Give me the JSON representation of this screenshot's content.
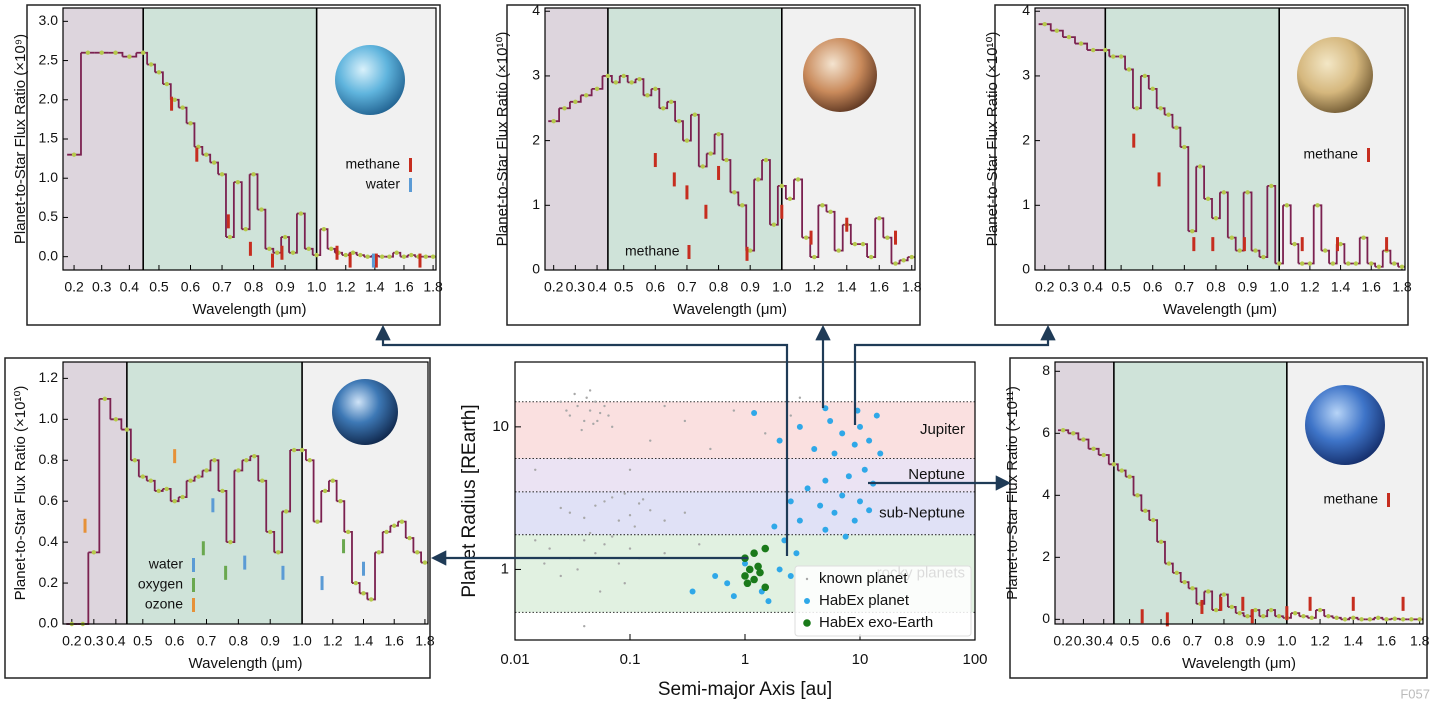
{
  "chart_data": [
    {
      "type": "line",
      "ylabel": "Planet-to-Star Flux Ratio (×10⁹)",
      "xlabel": "Wavelength (μm)",
      "x": [
        0.2,
        0.25,
        0.3,
        0.35,
        0.4,
        0.45,
        0.475,
        0.5,
        0.525,
        0.55,
        0.575,
        0.6,
        0.625,
        0.65,
        0.675,
        0.7,
        0.725,
        0.75,
        0.775,
        0.8,
        0.825,
        0.85,
        0.875,
        0.9,
        0.925,
        0.95,
        0.975,
        1.0,
        1.05,
        1.1,
        1.15,
        1.2,
        1.25,
        1.3,
        1.35,
        1.4,
        1.45,
        1.5,
        1.55,
        1.6,
        1.65,
        1.7,
        1.75,
        1.8
      ],
      "values": [
        1.3,
        2.6,
        2.6,
        2.6,
        2.55,
        2.6,
        2.45,
        2.35,
        2.2,
        2.0,
        1.9,
        1.7,
        1.4,
        1.3,
        1.2,
        1.05,
        0.25,
        0.95,
        0.35,
        1.05,
        0.6,
        0.1,
        0.05,
        0.25,
        0.05,
        0.55,
        0.1,
        0.02,
        0.35,
        0.1,
        0.05,
        0.02,
        0.05,
        0.02,
        0.0,
        0.01,
        0.0,
        0.0,
        0.05,
        0.0,
        0.02,
        0.0,
        0.0,
        0.0
      ],
      "color": "#7b2150",
      "point_color": "#b5c94c",
      "xlim": [
        0.16,
        1.82
      ],
      "xticks": [
        0.2,
        0.3,
        0.4,
        0.5,
        0.6,
        0.7,
        0.8,
        0.9,
        {
          "value": 1,
          "label": "1.0"
        },
        1.2,
        1.4,
        1.6,
        1.8
      ],
      "ylim": [
        -0.17,
        3.17
      ],
      "yticks": [
        {
          "value": 0,
          "label": "0.0"
        },
        0.5,
        {
          "value": 1,
          "label": "1.0"
        },
        1.5,
        {
          "value": 2,
          "label": "2.0"
        },
        2.5,
        {
          "value": 3,
          "label": "3.0"
        }
      ],
      "regions": [
        {
          "range": [
            0.16,
            0.45
          ],
          "color": "#ddd5dd"
        },
        {
          "range": [
            0.45,
            1.0
          ],
          "color": "#cfe3d9"
        },
        {
          "range": [
            1.0,
            1.82
          ],
          "color": "#f1f1f1"
        }
      ],
      "features": [
        {
          "name": "methane",
          "color": "#c62d1f",
          "x": [
            0.54,
            0.62,
            0.72,
            0.79,
            0.86,
            0.89,
            1.14,
            1.23,
            1.41,
            1.71
          ],
          "values": [
            1.95,
            1.3,
            0.45,
            0.1,
            -0.05,
            0.05,
            0.05,
            -0.05,
            -0.05,
            -0.05
          ]
        },
        {
          "name": "water",
          "color": "#5b9bd5",
          "x": [
            1.39
          ],
          "values": [
            -0.05
          ]
        }
      ]
    },
    {
      "type": "line",
      "ylabel": "Planet-to-Star Flux Ratio (×10¹⁰)",
      "xlabel": "Wavelength (μm)",
      "x": [
        0.2,
        0.25,
        0.3,
        0.35,
        0.4,
        0.45,
        0.475,
        0.5,
        0.525,
        0.55,
        0.575,
        0.6,
        0.625,
        0.65,
        0.675,
        0.7,
        0.725,
        0.75,
        0.775,
        0.8,
        0.825,
        0.85,
        0.875,
        0.9,
        0.925,
        0.95,
        0.975,
        1.0,
        1.05,
        1.1,
        1.15,
        1.2,
        1.25,
        1.3,
        1.35,
        1.4,
        1.45,
        1.5,
        1.55,
        1.6,
        1.65,
        1.7,
        1.75,
        1.8
      ],
      "values": [
        2.3,
        2.5,
        2.6,
        2.7,
        2.8,
        3.0,
        2.9,
        3.0,
        2.9,
        2.95,
        2.7,
        2.8,
        2.5,
        2.6,
        2.3,
        2.0,
        2.4,
        1.6,
        1.8,
        2.1,
        1.7,
        1.2,
        1.0,
        0.3,
        1.4,
        1.7,
        0.7,
        1.3,
        1.1,
        1.4,
        0.5,
        0.2,
        1.0,
        0.9,
        0.3,
        0.7,
        0.4,
        0.4,
        0.2,
        0.8,
        0.5,
        0.1,
        0.15,
        0.2
      ],
      "color": "#7b2150",
      "point_color": "#b5c94c",
      "xlim": [
        0.16,
        1.82
      ],
      "xticks": [
        0.2,
        0.3,
        0.4,
        0.5,
        0.6,
        0.7,
        0.8,
        0.9,
        {
          "value": 1,
          "label": "1.0"
        },
        1.2,
        1.4,
        1.6,
        1.8
      ],
      "ylim": [
        0,
        4.05
      ],
      "yticks": [
        0,
        1,
        2,
        3,
        4
      ],
      "regions": [
        {
          "range": [
            0.16,
            0.45
          ],
          "color": "#ddd5dd"
        },
        {
          "range": [
            0.45,
            1.0
          ],
          "color": "#cfe3d9"
        },
        {
          "range": [
            1.0,
            1.82
          ],
          "color": "#f1f1f1"
        }
      ],
      "features": [
        {
          "name": "methane",
          "color": "#c62d1f",
          "x": [
            0.6,
            0.66,
            0.7,
            0.76,
            0.8,
            0.89,
            1.0,
            1.18,
            1.4,
            1.7
          ],
          "values": [
            1.7,
            1.4,
            1.2,
            0.9,
            1.5,
            0.25,
            0.9,
            0.5,
            0.7,
            0.5
          ]
        }
      ]
    },
    {
      "type": "line",
      "ylabel": "Planet-to-Star Flux Ratio (×10¹⁰)",
      "xlabel": "Wavelength (μm)",
      "x": [
        0.2,
        0.25,
        0.3,
        0.35,
        0.4,
        0.45,
        0.475,
        0.5,
        0.525,
        0.55,
        0.575,
        0.6,
        0.625,
        0.65,
        0.675,
        0.7,
        0.725,
        0.75,
        0.775,
        0.8,
        0.825,
        0.85,
        0.875,
        0.9,
        0.925,
        0.95,
        0.975,
        1.0,
        1.05,
        1.1,
        1.15,
        1.2,
        1.25,
        1.3,
        1.35,
        1.4,
        1.45,
        1.5,
        1.55,
        1.6,
        1.65,
        1.7,
        1.75,
        1.8
      ],
      "values": [
        3.8,
        3.7,
        3.6,
        3.5,
        3.4,
        3.4,
        3.3,
        3.3,
        3.1,
        2.5,
        3.0,
        2.8,
        2.5,
        2.4,
        2.2,
        1.9,
        0.6,
        1.6,
        1.1,
        0.8,
        1.2,
        0.5,
        0.3,
        1.2,
        0.3,
        0.2,
        1.3,
        0.1,
        1.0,
        0.4,
        0.1,
        0.1,
        1.0,
        0.3,
        0.1,
        0.4,
        0.1,
        0.1,
        0.5,
        0.1,
        0.05,
        0.3,
        0.1,
        0.05
      ],
      "color": "#7b2150",
      "point_color": "#b5c94c",
      "xlim": [
        0.16,
        1.82
      ],
      "xticks": [
        0.2,
        0.3,
        0.4,
        0.5,
        0.6,
        0.7,
        0.8,
        0.9,
        {
          "value": 1,
          "label": "1.0"
        },
        1.2,
        1.4,
        1.6,
        1.8
      ],
      "ylim": [
        0,
        4.05
      ],
      "yticks": [
        0,
        1,
        2,
        3,
        4
      ],
      "regions": [
        {
          "range": [
            0.16,
            0.45
          ],
          "color": "#ddd5dd"
        },
        {
          "range": [
            0.45,
            1.0
          ],
          "color": "#cfe3d9"
        },
        {
          "range": [
            1.0,
            1.82
          ],
          "color": "#f1f1f1"
        }
      ],
      "features": [
        {
          "name": "methane",
          "color": "#c62d1f",
          "x": [
            0.54,
            0.62,
            0.73,
            0.79,
            0.89,
            1.15,
            1.38,
            1.7
          ],
          "values": [
            2.0,
            1.4,
            0.4,
            0.4,
            0.4,
            0.4,
            0.4,
            0.4
          ]
        }
      ]
    },
    {
      "type": "line",
      "ylabel": "Planet-to-Star Flux Ratio (×10¹⁰)",
      "xlabel": "Wavelength (μm)",
      "x": [
        0.2,
        0.25,
        0.3,
        0.35,
        0.4,
        0.45,
        0.475,
        0.5,
        0.525,
        0.55,
        0.575,
        0.6,
        0.625,
        0.65,
        0.675,
        0.7,
        0.725,
        0.75,
        0.775,
        0.8,
        0.825,
        0.85,
        0.875,
        0.9,
        0.925,
        0.95,
        0.975,
        1.0,
        1.05,
        1.1,
        1.15,
        1.2,
        1.25,
        1.3,
        1.35,
        1.4,
        1.45,
        1.5,
        1.55,
        1.6,
        1.65,
        1.7,
        1.75,
        1.8
      ],
      "values": [
        0.0,
        0.0,
        0.35,
        1.1,
        1.0,
        0.95,
        0.8,
        0.72,
        0.7,
        0.65,
        0.66,
        0.6,
        0.62,
        0.7,
        0.72,
        0.75,
        0.8,
        0.65,
        0.4,
        0.75,
        0.8,
        0.82,
        0.7,
        0.45,
        0.35,
        0.55,
        0.85,
        0.85,
        0.8,
        0.5,
        0.65,
        0.7,
        0.6,
        0.45,
        0.2,
        0.15,
        0.12,
        0.35,
        0.45,
        0.48,
        0.5,
        0.42,
        0.35,
        0.3
      ],
      "color": "#7b2150",
      "point_color": "#b5c94c",
      "xlim": [
        0.16,
        1.82
      ],
      "xticks": [
        0.2,
        0.3,
        0.4,
        0.5,
        0.6,
        0.7,
        0.8,
        0.9,
        {
          "value": 1,
          "label": "1.0"
        },
        1.2,
        1.4,
        1.6,
        1.8
      ],
      "ylim": [
        0,
        1.28
      ],
      "yticks": [
        {
          "value": 0,
          "label": "0.0"
        },
        0.2,
        0.4,
        0.6,
        0.8,
        {
          "value": 1,
          "label": "1.0"
        },
        1.2
      ],
      "regions": [
        {
          "range": [
            0.16,
            0.45
          ],
          "color": "#ddd5dd"
        },
        {
          "range": [
            0.45,
            1.0
          ],
          "color": "#cfe3d9"
        },
        {
          "range": [
            1.0,
            1.82
          ],
          "color": "#f1f1f1"
        }
      ],
      "features": [
        {
          "name": "water",
          "color": "#5b9bd5",
          "x": [
            0.72,
            0.82,
            0.94,
            1.13,
            1.4
          ],
          "values": [
            0.58,
            0.3,
            0.25,
            0.2,
            0.27
          ]
        },
        {
          "name": "oxygen",
          "color": "#6aa84f",
          "x": [
            0.69,
            0.76,
            1.27
          ],
          "values": [
            0.37,
            0.25,
            0.38
          ]
        },
        {
          "name": "ozone",
          "color": "#e69138",
          "x": [
            0.26,
            0.6
          ],
          "values": [
            0.48,
            0.82
          ]
        }
      ]
    },
    {
      "type": "scatter",
      "xlabel": "Semi-major Axis [au]",
      "ylabel": "Planet Radius [REarth]",
      "xscale": "log",
      "yscale": "log",
      "xlim": [
        0.01,
        100
      ],
      "xticks": [
        0.01,
        0.1,
        1,
        10,
        100
      ],
      "ylim": [
        0.32,
        28.5
      ],
      "yticks": [
        1,
        10
      ],
      "bands": [
        {
          "label": "Jupiter",
          "range": [
            6,
            15
          ],
          "color": "#fae0e0"
        },
        {
          "label": "Neptune",
          "range": [
            3.5,
            6
          ],
          "color": "#ebe3f3"
        },
        {
          "label": "sub-Neptune",
          "range": [
            1.75,
            3.5
          ],
          "color": "#e0e1f6"
        },
        {
          "label": "rocky planets",
          "range": [
            0.5,
            1.75
          ],
          "color": "#e1f1e1"
        }
      ],
      "series": [
        {
          "name": "known planet",
          "color": "#a8a8a8",
          "x": [
            0.03,
            0.035,
            0.04,
            0.045,
            0.05,
            0.042,
            0.055,
            0.038,
            0.048,
            0.06,
            0.033,
            0.052,
            0.028,
            0.065,
            0.045,
            0.07,
            0.025,
            0.3,
            0.8,
            1.5,
            2.5,
            0.15,
            0.2,
            0.5,
            3,
            0.03,
            0.05,
            0.07,
            0.1,
            0.12,
            0.08,
            0.15,
            0.06,
            0.04,
            0.09,
            0.2,
            0.11,
            0.025,
            0.3,
            0.13,
            0.02,
            0.03,
            0.04,
            0.05,
            0.06,
            0.08,
            0.1,
            0.015,
            0.035,
            0.07,
            0.12,
            0.025,
            0.045,
            0.09,
            0.2,
            0.018,
            0.055,
            0.4,
            0.015,
            0.03,
            0.1,
            0.04
          ],
          "values": [
            12,
            14,
            11,
            13,
            15,
            16,
            12.5,
            9.5,
            10.5,
            14,
            17,
            11,
            13,
            12,
            18,
            10,
            15,
            11,
            13,
            9,
            12,
            8,
            14,
            7,
            16,
            2.5,
            2.8,
            3.2,
            2.4,
            2.9,
            2.2,
            2.6,
            3.0,
            2.3,
            3.4,
            2.2,
            2.0,
            2.7,
            2.5,
            3.1,
            1.4,
            1.2,
            1.6,
            1.3,
            1.5,
            1.1,
            1.4,
            1.6,
            1.0,
            1.7,
            1.2,
            0.9,
            1.8,
            0.8,
            1.3,
            1.1,
            0.7,
            1.5,
            5,
            6,
            5,
            0.4
          ]
        },
        {
          "name": "HabEx planet",
          "color": "#2fa8e8",
          "x": [
            5,
            9.5,
            1.2,
            3,
            5.5,
            7,
            10,
            14,
            2,
            4,
            6,
            9,
            12,
            15,
            11,
            8,
            13,
            5,
            3.5,
            7,
            10,
            2.5,
            4.5,
            6,
            9,
            12,
            3,
            1.8,
            2.2,
            5,
            7.5,
            1.5,
            2.8,
            1.0,
            2,
            0.7,
            0.55,
            1.4,
            0.8,
            1.6,
            0.35,
            2.5
          ],
          "values": [
            13.5,
            13,
            12.5,
            10,
            11,
            9,
            10,
            12,
            8,
            7,
            6.5,
            7.5,
            8,
            6.5,
            5,
            4.5,
            4,
            4.2,
            3.7,
            3.3,
            3,
            3,
            2.8,
            2.5,
            2.2,
            2.6,
            2.2,
            2,
            1.6,
            1.9,
            1.7,
            1.4,
            1.3,
            1.1,
            1.0,
            0.8,
            0.9,
            0.7,
            0.65,
            0.6,
            0.7,
            0.9
          ]
        },
        {
          "name": "HabEx exo-Earth",
          "color": "#1a7a1a",
          "x": [
            1.0,
            1.2,
            1.5,
            1.1,
            1.3,
            1.0,
            1.2,
            1.5,
            1.05,
            1.35
          ],
          "values": [
            1.2,
            1.3,
            1.4,
            1.0,
            1.05,
            0.9,
            0.85,
            0.75,
            0.8,
            0.95
          ]
        }
      ]
    },
    {
      "type": "line",
      "ylabel": "Planet-to-Star Flux Ratio (×10¹¹)",
      "xlabel": "Wavelength (μm)",
      "x": [
        0.2,
        0.25,
        0.3,
        0.35,
        0.4,
        0.45,
        0.475,
        0.5,
        0.525,
        0.55,
        0.575,
        0.6,
        0.625,
        0.65,
        0.675,
        0.7,
        0.725,
        0.75,
        0.775,
        0.8,
        0.825,
        0.85,
        0.875,
        0.9,
        0.925,
        0.95,
        0.975,
        1.0,
        1.05,
        1.1,
        1.15,
        1.2,
        1.25,
        1.3,
        1.35,
        1.4,
        1.45,
        1.5,
        1.55,
        1.6,
        1.65,
        1.7,
        1.75,
        1.8
      ],
      "values": [
        6.1,
        6.0,
        5.8,
        5.5,
        5.3,
        5.0,
        4.8,
        4.6,
        4.0,
        3.5,
        3.2,
        2.5,
        1.8,
        1.5,
        1.2,
        1.0,
        0.5,
        0.9,
        0.3,
        0.8,
        0.4,
        0.2,
        0.1,
        0.3,
        0.1,
        0.3,
        0.1,
        0.05,
        0.2,
        0.1,
        0.05,
        0.3,
        0.1,
        0.05,
        0.0,
        0.05,
        0.0,
        0.0,
        0.05,
        0.0,
        0.02,
        0.0,
        0.0,
        0.0
      ],
      "color": "#7b2150",
      "point_color": "#b5c94c",
      "xlim": [
        0.16,
        1.82
      ],
      "xticks": [
        0.2,
        0.3,
        0.4,
        0.5,
        0.6,
        0.7,
        0.8,
        0.9,
        {
          "value": 1,
          "label": "1.0"
        },
        1.2,
        1.4,
        1.6,
        1.8
      ],
      "ylim": [
        -0.15,
        8.3
      ],
      "yticks": [
        0,
        2,
        4,
        6,
        8
      ],
      "regions": [
        {
          "range": [
            0.16,
            0.45
          ],
          "color": "#ddd5dd"
        },
        {
          "range": [
            0.45,
            1.0
          ],
          "color": "#cfe3d9"
        },
        {
          "range": [
            1.0,
            1.82
          ],
          "color": "#f1f1f1"
        }
      ],
      "features": [
        {
          "name": "methane",
          "color": "#c62d1f",
          "x": [
            0.54,
            0.62,
            0.73,
            0.79,
            0.86,
            0.89,
            1.0,
            1.14,
            1.4,
            1.7
          ],
          "values": [
            0.1,
            0.0,
            0.4,
            0.5,
            0.5,
            0.1,
            0.2,
            0.5,
            0.5,
            0.5
          ]
        }
      ]
    }
  ],
  "figure_id": "F057"
}
